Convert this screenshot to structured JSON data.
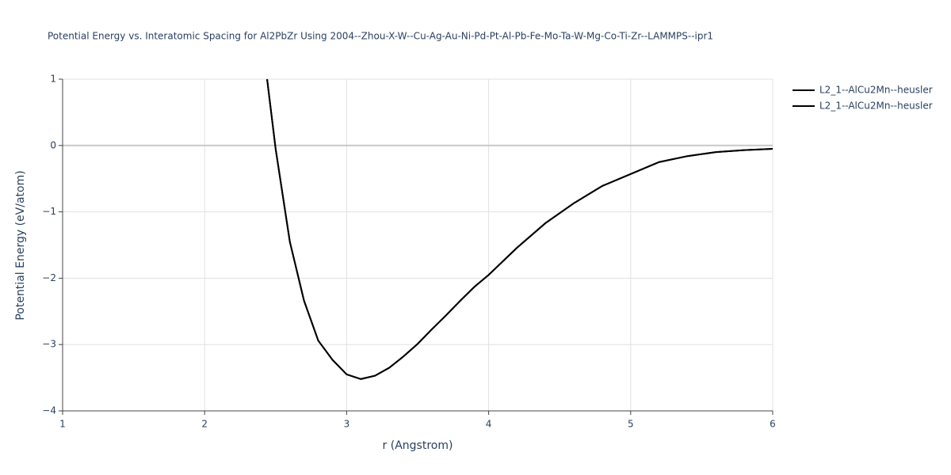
{
  "chart_data": {
    "type": "line",
    "title": "Potential Energy vs. Interatomic Spacing for Al2PbZr Using 2004--Zhou-X-W--Cu-Ag-Au-Ni-Pd-Pt-Al-Pb-Fe-Mo-Ta-W-Mg-Co-Ti-Zr--LAMMPS--ipr1",
    "x_label": "r (Angstrom)",
    "y_label": "Potential Energy (eV/atom)",
    "x": [
      2.44,
      2.5,
      2.6,
      2.7,
      2.8,
      2.9,
      3.0,
      3.1,
      3.2,
      3.3,
      3.4,
      3.5,
      3.6,
      3.7,
      3.8,
      3.9,
      4.0,
      4.2,
      4.4,
      4.6,
      4.8,
      5.0,
      5.2,
      5.4,
      5.6,
      5.8,
      6.0
    ],
    "series": [
      {
        "name": "L2_1--AlCu2Mn--heusler",
        "color": "#000000",
        "values": [
          1.0,
          -0.05,
          -1.45,
          -2.34,
          -2.94,
          -3.23,
          -3.45,
          -3.52,
          -3.47,
          -3.35,
          -3.18,
          -2.99,
          -2.77,
          -2.56,
          -2.34,
          -2.13,
          -1.95,
          -1.54,
          -1.17,
          -0.87,
          -0.61,
          -0.43,
          -0.25,
          -0.16,
          -0.1,
          -0.07,
          -0.05
        ]
      },
      {
        "name": "L2_1--AlCu2Mn--heusler",
        "color": "#000000",
        "values": [
          1.0,
          -0.05,
          -1.45,
          -2.34,
          -2.94,
          -3.23,
          -3.45,
          -3.52,
          -3.47,
          -3.35,
          -3.18,
          -2.99,
          -2.77,
          -2.56,
          -2.34,
          -2.13,
          -1.95,
          -1.54,
          -1.17,
          -0.87,
          -0.61,
          -0.43,
          -0.25,
          -0.16,
          -0.1,
          -0.07,
          -0.05
        ]
      }
    ],
    "xlim": [
      1,
      6
    ],
    "xticks": [
      1,
      2,
      3,
      4,
      5,
      6
    ],
    "ylim": [
      -4,
      1
    ],
    "yticks": [
      {
        "value": -4,
        "label": "−4"
      },
      {
        "value": -3,
        "label": "−3"
      },
      {
        "value": -2,
        "label": "−2"
      },
      {
        "value": -1,
        "label": "−1"
      },
      0,
      1
    ],
    "grid": true,
    "legend": "right"
  }
}
